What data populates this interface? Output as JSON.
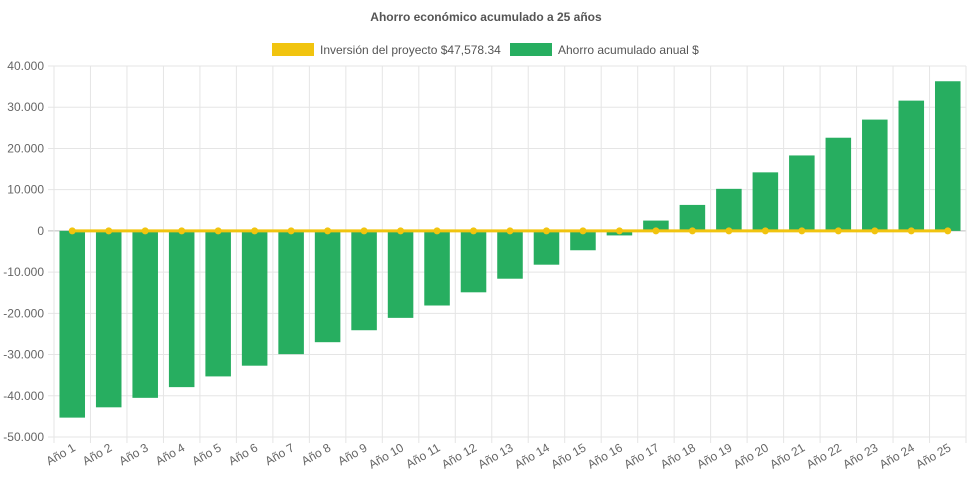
{
  "chart_data": {
    "type": "bar",
    "title": "Ahorro económico acumulado a 25 años",
    "categories": [
      "Año 1",
      "Año 2",
      "Año 3",
      "Año 4",
      "Año 5",
      "Año 6",
      "Año 7",
      "Año 8",
      "Año 9",
      "Año 10",
      "Año 11",
      "Año 12",
      "Año 13",
      "Año 14",
      "Año 15",
      "Año 16",
      "Año 17",
      "Año 18",
      "Año 19",
      "Año 20",
      "Año 21",
      "Año 22",
      "Año 23",
      "Año 24",
      "Año 25"
    ],
    "series": [
      {
        "name": "Inversión del proyecto $47,578.34",
        "kind": "line",
        "color": "#f1c40f",
        "values": [
          0,
          0,
          0,
          0,
          0,
          0,
          0,
          0,
          0,
          0,
          0,
          0,
          0,
          0,
          0,
          0,
          0,
          0,
          0,
          0,
          0,
          0,
          0,
          0,
          0
        ]
      },
      {
        "name": "Ahorro acumulado anual $",
        "kind": "bar",
        "color": "#27ae60",
        "values": [
          -45300,
          -42800,
          -40500,
          -37900,
          -35300,
          -32700,
          -29900,
          -27000,
          -24100,
          -21100,
          -18100,
          -14900,
          -11600,
          -8200,
          -4700,
          -1100,
          2500,
          6300,
          10200,
          14200,
          18300,
          22600,
          27000,
          31600,
          36300
        ]
      }
    ],
    "ylim": [
      -50000,
      40000
    ],
    "yticks": [
      "40.000",
      "30.000",
      "20.000",
      "10.000",
      "0",
      "-10.000",
      "-20.000",
      "-30.000",
      "-40.000",
      "-50.000"
    ],
    "ytick_values": [
      40000,
      30000,
      20000,
      10000,
      0,
      -10000,
      -20000,
      -30000,
      -40000,
      -50000
    ],
    "grid": true,
    "legend_position": "top"
  }
}
